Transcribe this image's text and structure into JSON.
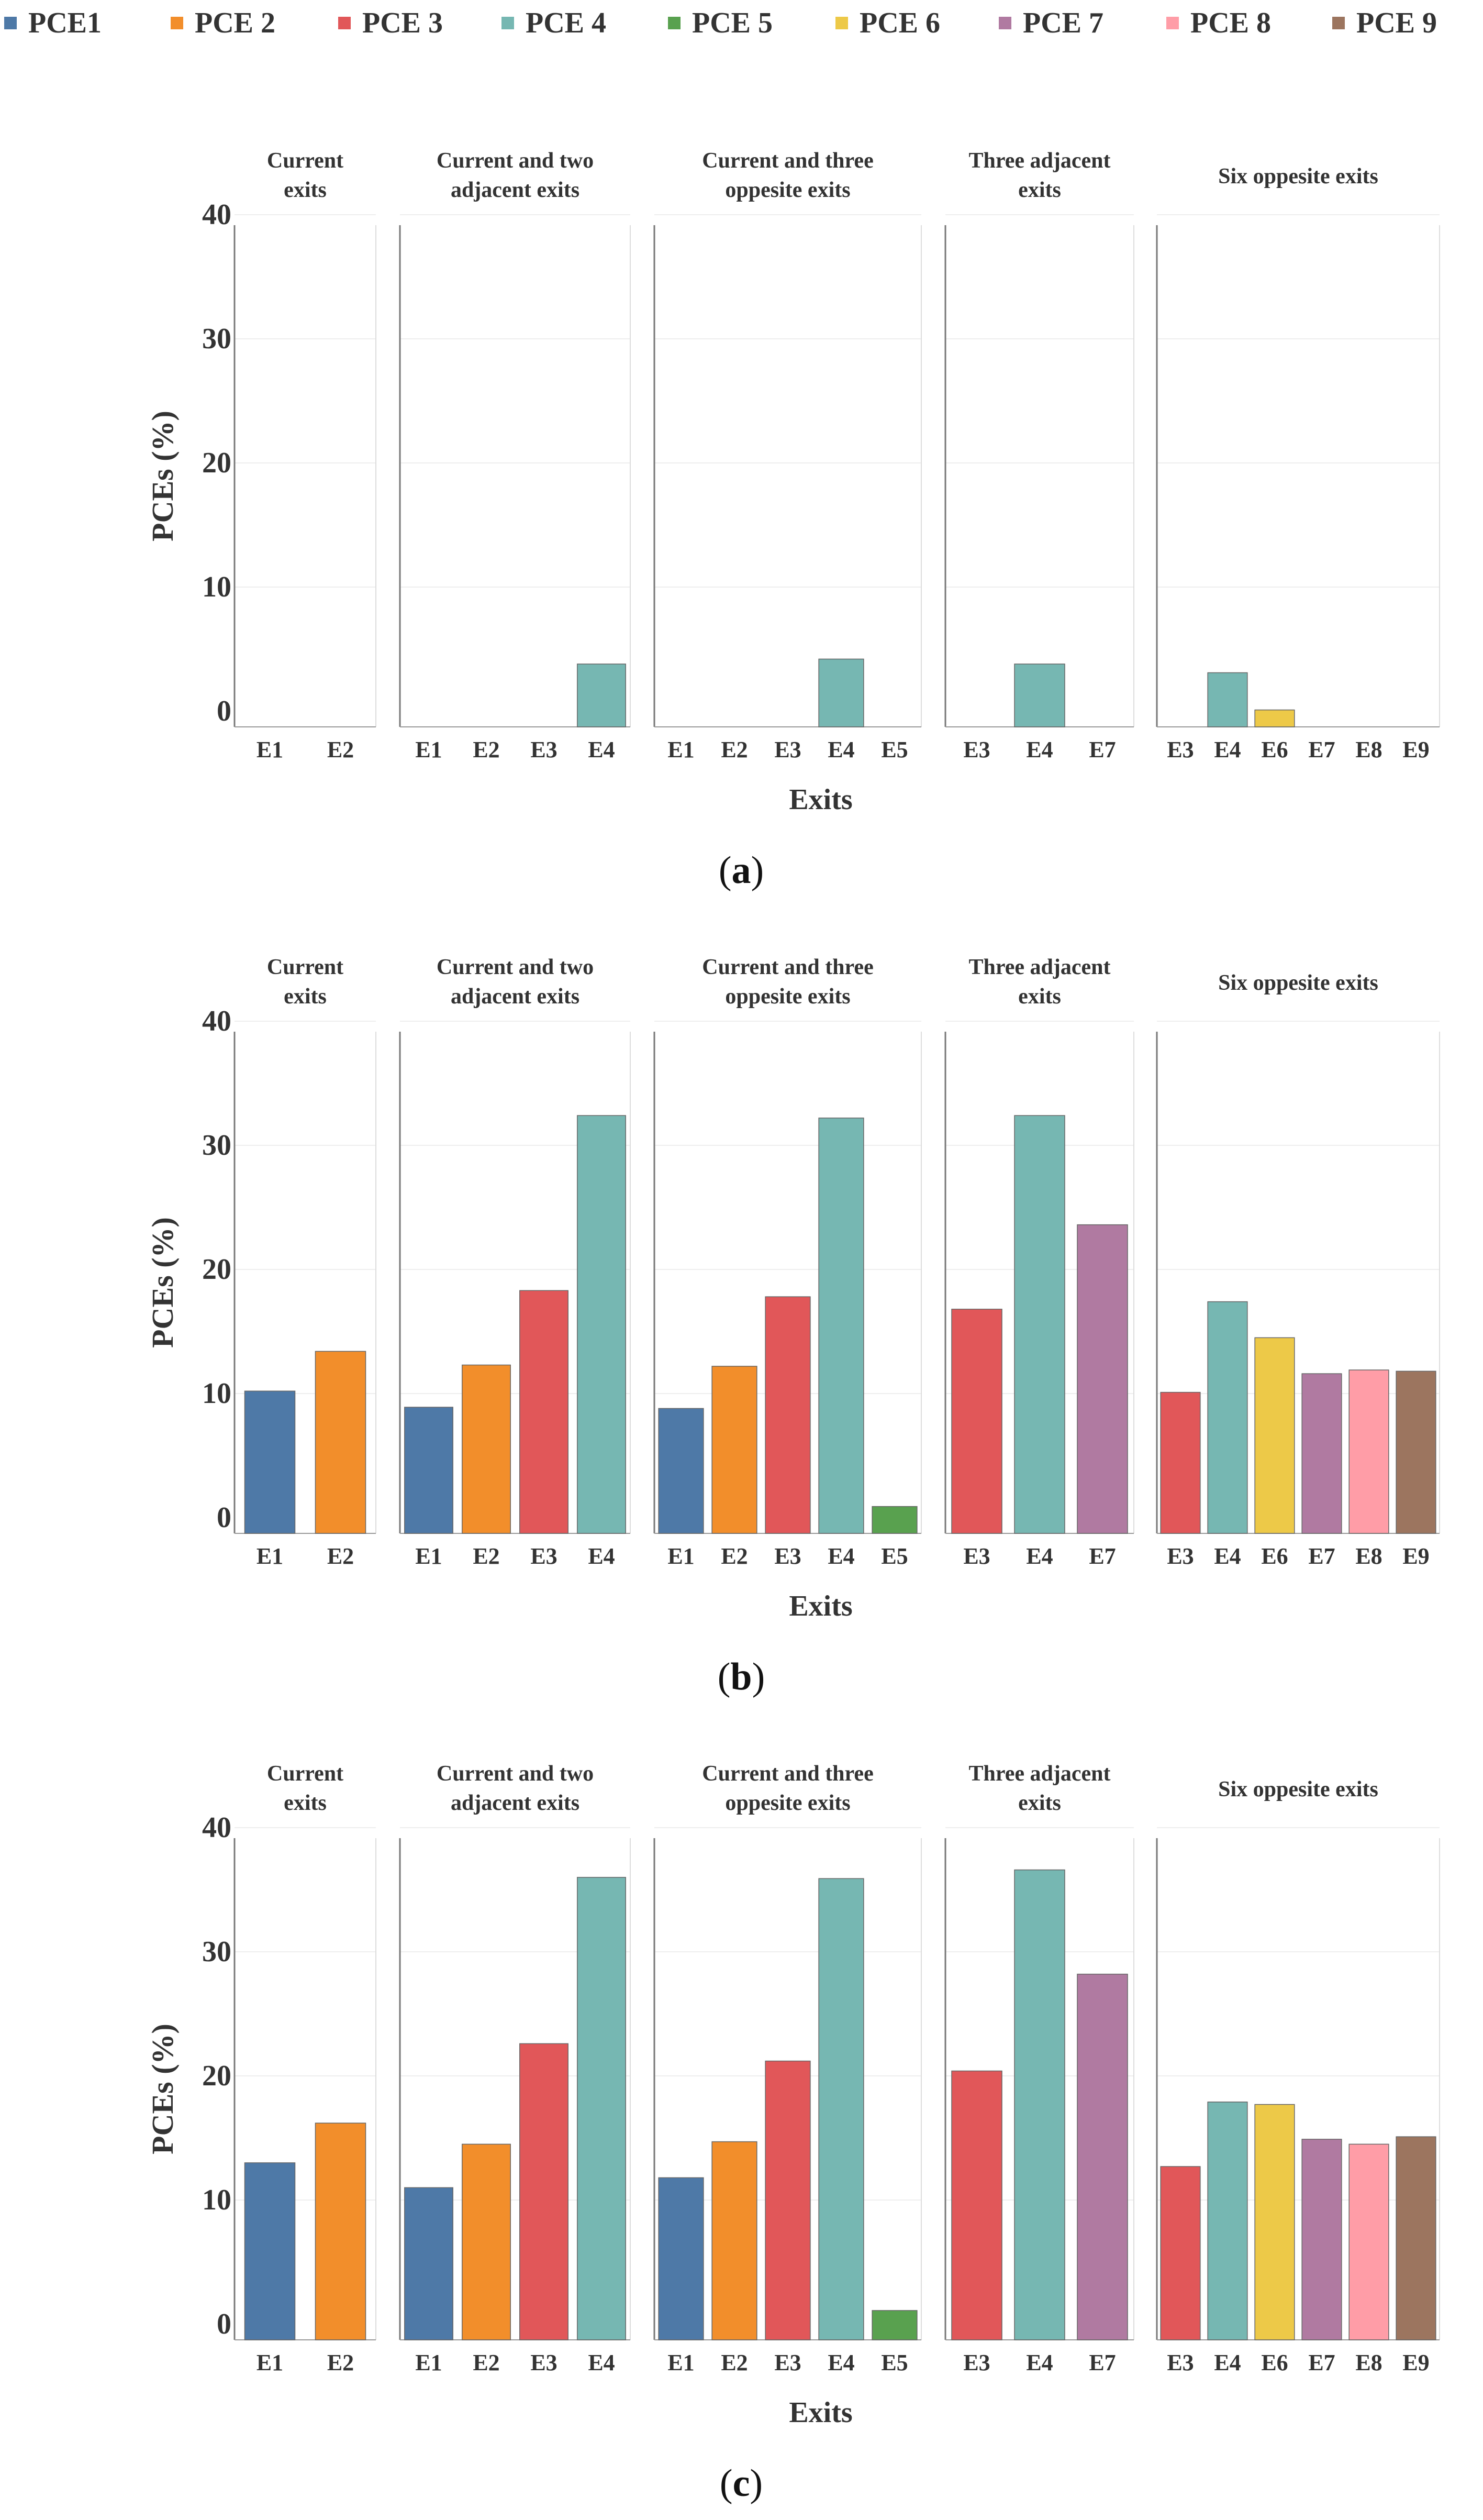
{
  "legend": [
    {
      "key": "PCE1",
      "label": "PCE1",
      "color": "#4E79A7"
    },
    {
      "key": "PCE2",
      "label": "PCE 2",
      "color": "#F28E2B"
    },
    {
      "key": "PCE3",
      "label": "PCE 3",
      "color": "#E15759"
    },
    {
      "key": "PCE4",
      "label": "PCE 4",
      "color": "#76B7B2"
    },
    {
      "key": "PCE5",
      "label": "PCE 5",
      "color": "#59A14F"
    },
    {
      "key": "PCE6",
      "label": "PCE 6",
      "color": "#EDC948"
    },
    {
      "key": "PCE7",
      "label": "PCE 7",
      "color": "#B07AA1"
    },
    {
      "key": "PCE8",
      "label": "PCE 8",
      "color": "#FF9DA7"
    },
    {
      "key": "PCE9",
      "label": "PCE 9",
      "color": "#9C755F"
    }
  ],
  "exit_colors": {
    "E1": "#4E79A7",
    "E2": "#F28E2B",
    "E3": "#E15759",
    "E4": "#76B7B2",
    "E5": "#59A14F",
    "E6": "#EDC948",
    "E7": "#B07AA1",
    "E8": "#FF9DA7",
    "E9": "#9C755F"
  },
  "chart_data": [
    {
      "type": "bar",
      "caption_label": "a",
      "xlabel": "Exits",
      "ylabel": "PCEs (%)",
      "ylim": [
        0,
        40
      ],
      "yticks": [
        0,
        10,
        20,
        30,
        40
      ],
      "grid": true,
      "panels": [
        {
          "title": [
            "Current",
            "exits"
          ],
          "categories": [
            "E1",
            "E2"
          ],
          "values": [
            0,
            0
          ]
        },
        {
          "title": [
            "Current and two",
            "adjacent exits"
          ],
          "categories": [
            "E1",
            "E2",
            "E3",
            "E4"
          ],
          "values": [
            0,
            0,
            0,
            3.8
          ]
        },
        {
          "title": [
            "Current and three",
            "oppesite exits"
          ],
          "categories": [
            "E1",
            "E2",
            "E3",
            "E4",
            "E5"
          ],
          "values": [
            0,
            0,
            0,
            4.2,
            0
          ]
        },
        {
          "title": [
            "Three adjacent",
            "exits"
          ],
          "categories": [
            "E3",
            "E4",
            "E7"
          ],
          "values": [
            0,
            3.8,
            0
          ]
        },
        {
          "title": [
            "Six oppesite exits"
          ],
          "categories": [
            "E3",
            "E4",
            "E6",
            "E7",
            "E8",
            "E9"
          ],
          "values": [
            0,
            3.1,
            0.1,
            0,
            0,
            0
          ]
        }
      ]
    },
    {
      "type": "bar",
      "caption_label": "b",
      "xlabel": "Exits",
      "ylabel": "PCEs (%)",
      "ylim": [
        0,
        40
      ],
      "yticks": [
        0,
        10,
        20,
        30,
        40
      ],
      "grid": true,
      "panels": [
        {
          "title": [
            "Current",
            "exits"
          ],
          "categories": [
            "E1",
            "E2"
          ],
          "values": [
            10.2,
            13.4
          ]
        },
        {
          "title": [
            "Current and two",
            "adjacent exits"
          ],
          "categories": [
            "E1",
            "E2",
            "E3",
            "E4"
          ],
          "values": [
            8.9,
            12.3,
            18.3,
            32.4
          ]
        },
        {
          "title": [
            "Current and three",
            "oppesite exits"
          ],
          "categories": [
            "E1",
            "E2",
            "E3",
            "E4",
            "E5"
          ],
          "values": [
            8.8,
            12.2,
            17.8,
            32.2,
            0.9
          ]
        },
        {
          "title": [
            "Three adjacent",
            "exits"
          ],
          "categories": [
            "E3",
            "E4",
            "E7"
          ],
          "values": [
            16.8,
            32.4,
            23.6
          ]
        },
        {
          "title": [
            "Six oppesite exits"
          ],
          "categories": [
            "E3",
            "E4",
            "E6",
            "E7",
            "E8",
            "E9"
          ],
          "values": [
            10.1,
            17.4,
            14.5,
            11.6,
            11.9,
            11.8
          ]
        }
      ]
    },
    {
      "type": "bar",
      "caption_label": "c",
      "xlabel": "Exits",
      "ylabel": "PCEs (%)",
      "ylim": [
        0,
        40
      ],
      "yticks": [
        0,
        10,
        20,
        30,
        40
      ],
      "grid": true,
      "panels": [
        {
          "title": [
            "Current",
            "exits"
          ],
          "categories": [
            "E1",
            "E2"
          ],
          "values": [
            13.0,
            16.2
          ]
        },
        {
          "title": [
            "Current and two",
            "adjacent exits"
          ],
          "categories": [
            "E1",
            "E2",
            "E3",
            "E4"
          ],
          "values": [
            11.0,
            14.5,
            22.6,
            36.0
          ]
        },
        {
          "title": [
            "Current and three",
            "oppesite exits"
          ],
          "categories": [
            "E1",
            "E2",
            "E3",
            "E4",
            "E5"
          ],
          "values": [
            11.8,
            14.7,
            21.2,
            35.9,
            1.1
          ]
        },
        {
          "title": [
            "Three adjacent",
            "exits"
          ],
          "categories": [
            "E3",
            "E4",
            "E7"
          ],
          "values": [
            20.4,
            36.6,
            28.2
          ]
        },
        {
          "title": [
            "Six oppesite exits"
          ],
          "categories": [
            "E3",
            "E4",
            "E6",
            "E7",
            "E8",
            "E9"
          ],
          "values": [
            12.7,
            17.9,
            17.7,
            14.9,
            14.5,
            15.1
          ]
        }
      ]
    }
  ]
}
